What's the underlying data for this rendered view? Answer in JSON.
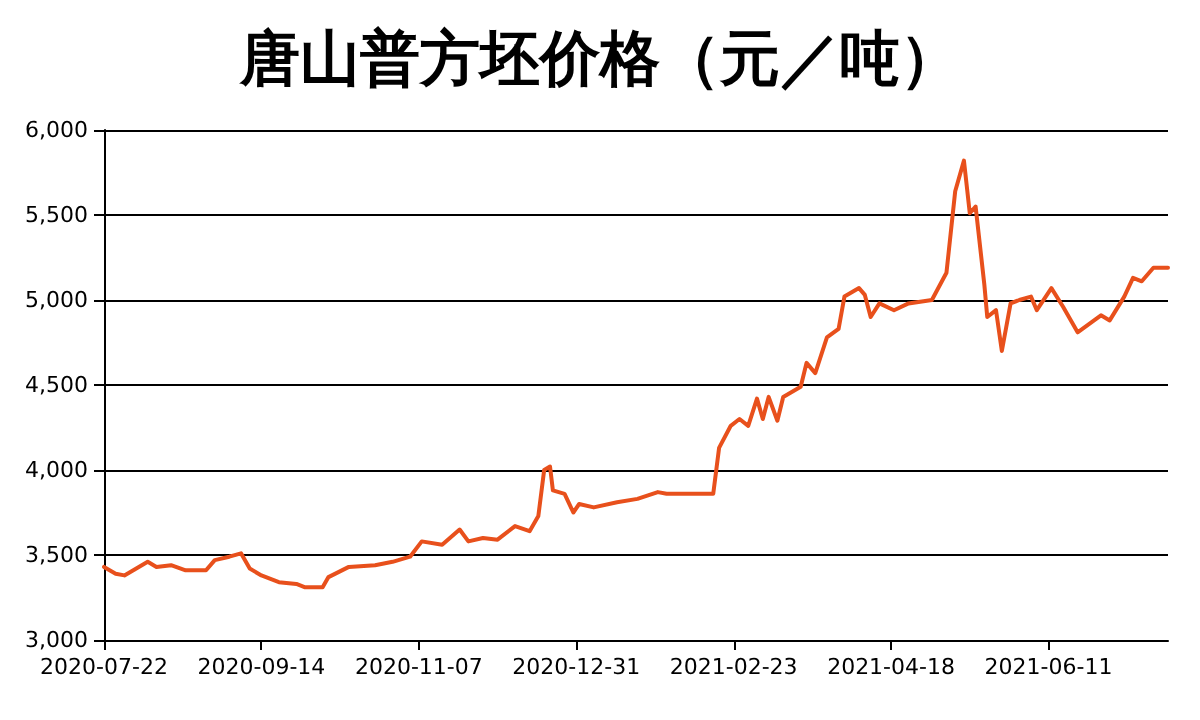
{
  "chart_data": {
    "type": "line",
    "title": "唐山普方坯价格（元／吨）",
    "x": [
      "2020-07-22",
      "2020-07-26",
      "2020-07-29",
      "2020-08-06",
      "2020-08-09",
      "2020-08-14",
      "2020-08-19",
      "2020-08-26",
      "2020-08-29",
      "2020-09-03",
      "2020-09-07",
      "2020-09-10",
      "2020-09-14",
      "2020-09-20",
      "2020-09-26",
      "2020-09-29",
      "2020-10-05",
      "2020-10-07",
      "2020-10-14",
      "2020-10-23",
      "2020-10-29",
      "2020-11-04",
      "2020-11-08",
      "2020-11-15",
      "2020-11-21",
      "2020-11-24",
      "2020-11-29",
      "2020-12-04",
      "2020-12-10",
      "2020-12-15",
      "2020-12-18",
      "2020-12-20",
      "2020-12-22",
      "2020-12-23",
      "2020-12-27",
      "2020-12-30",
      "2021-01-01",
      "2021-01-06",
      "2021-01-14",
      "2021-01-21",
      "2021-01-28",
      "2021-01-31",
      "2021-02-16",
      "2021-02-18",
      "2021-02-22",
      "2021-02-25",
      "2021-02-28",
      "2021-03-03",
      "2021-03-05",
      "2021-03-07",
      "2021-03-10",
      "2021-03-12",
      "2021-03-18",
      "2021-03-20",
      "2021-03-23",
      "2021-03-27",
      "2021-03-31",
      "2021-04-02",
      "2021-04-07",
      "2021-04-09",
      "2021-04-11",
      "2021-04-14",
      "2021-04-19",
      "2021-04-24",
      "2021-05-02",
      "2021-05-07",
      "2021-05-10",
      "2021-05-13",
      "2021-05-15",
      "2021-05-17",
      "2021-05-20",
      "2021-05-21",
      "2021-05-24",
      "2021-05-26",
      "2021-05-29",
      "2021-06-01",
      "2021-06-05",
      "2021-06-07",
      "2021-06-12",
      "2021-06-16",
      "2021-06-21",
      "2021-06-29",
      "2021-07-02",
      "2021-07-07",
      "2021-07-10",
      "2021-07-13",
      "2021-07-17",
      "2021-07-22"
    ],
    "series": [
      {
        "color": "#e8501c",
        "values": [
          3430,
          3390,
          3380,
          3460,
          3430,
          3440,
          3410,
          3410,
          3470,
          3490,
          3510,
          3420,
          3380,
          3340,
          3330,
          3310,
          3310,
          3370,
          3430,
          3440,
          3460,
          3490,
          3580,
          3560,
          3650,
          3580,
          3600,
          3590,
          3670,
          3640,
          3730,
          4000,
          4020,
          3880,
          3860,
          3750,
          3800,
          3780,
          3810,
          3830,
          3870,
          3860,
          3860,
          4130,
          4260,
          4300,
          4260,
          4420,
          4300,
          4430,
          4290,
          4430,
          4490,
          4630,
          4570,
          4780,
          4830,
          5020,
          5070,
          5030,
          4900,
          4980,
          4940,
          4980,
          5000,
          5160,
          5640,
          5820,
          5510,
          5550,
          5090,
          4900,
          4940,
          4700,
          4980,
          5000,
          5020,
          4940,
          5070,
          4960,
          4810,
          4910,
          4880,
          5020,
          5130,
          5110,
          5190,
          5190
        ]
      }
    ],
    "xlim": [
      "2020-07-22",
      "2021-07-22"
    ],
    "xticks": [
      "2020-07-22",
      "2020-09-14",
      "2020-11-07",
      "2020-12-31",
      "2021-02-23",
      "2021-04-18",
      "2021-06-11"
    ],
    "ylim": [
      3000,
      6000
    ],
    "yticks": [
      {
        "value": 3000,
        "label": "3,000"
      },
      {
        "value": 3500,
        "label": "3,500"
      },
      {
        "value": 4000,
        "label": "4,000"
      },
      {
        "value": 4500,
        "label": "4,500"
      },
      {
        "value": 5000,
        "label": "5,000"
      },
      {
        "value": 5500,
        "label": "5,500"
      },
      {
        "value": 6000,
        "label": "6,000"
      }
    ],
    "grid": "y",
    "marker": "none",
    "line_style": "solid"
  }
}
